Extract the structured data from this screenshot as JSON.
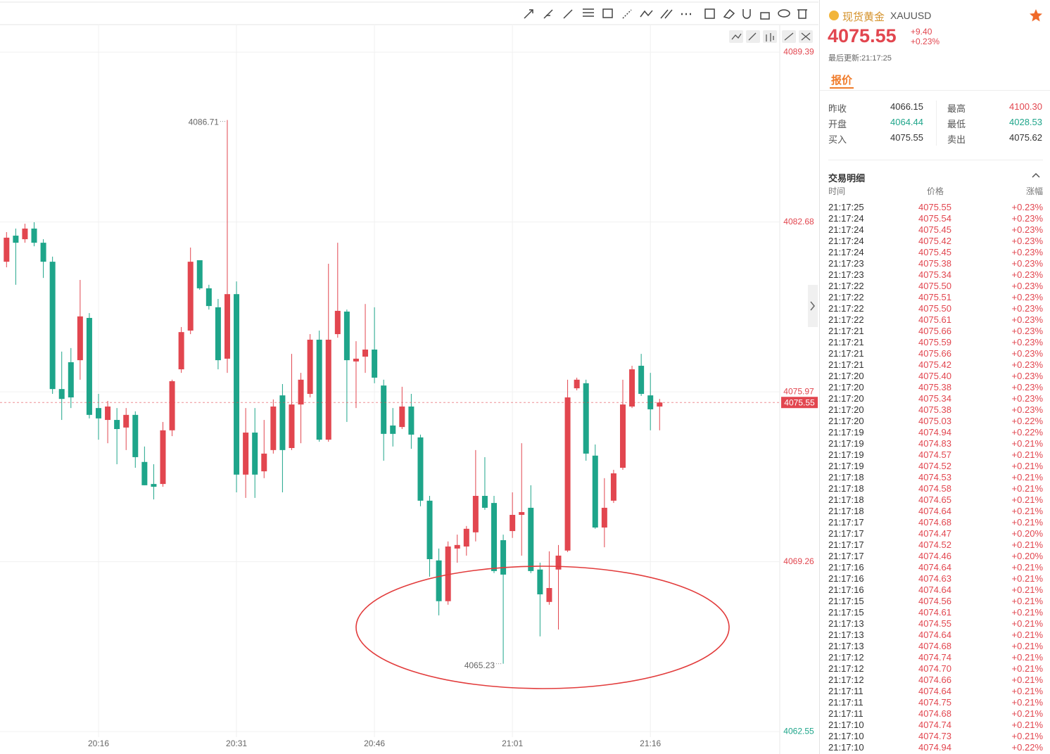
{
  "chart_data": {
    "type": "candlestick",
    "categories": [
      null,
      null,
      null,
      null,
      null,
      null,
      null,
      null,
      null,
      null,
      "20:16",
      null,
      null,
      null,
      null,
      null,
      null,
      null,
      null,
      null,
      null,
      null,
      null,
      null,
      null,
      "20:31",
      null,
      null,
      null,
      null,
      null,
      null,
      null,
      null,
      null,
      null,
      null,
      null,
      null,
      null,
      "20:46",
      null,
      null,
      null,
      null,
      null,
      null,
      null,
      null,
      null,
      null,
      null,
      null,
      null,
      null,
      "21:01",
      null,
      null,
      null,
      null,
      null,
      null,
      null,
      null,
      null,
      null,
      null,
      null,
      null,
      null,
      "21:16",
      null
    ],
    "open": [
      4081.11,
      4082.14,
      4082.0,
      4082.42,
      4081.86,
      4081.11,
      4076.08,
      4077.14,
      4077.22,
      4078.89,
      4075.33,
      4074.86,
      4074.86,
      4074.56,
      4075.06,
      4073.2,
      4072.33,
      4072.33,
      4074.45,
      4076.86,
      4078.39,
      4081.17,
      4080.06,
      4079.31,
      4077.28,
      4079.83,
      4072.7,
      4074.36,
      4072.83,
      4073.67,
      4075.83,
      4073.75,
      4075.47,
      4075.89,
      4078.03,
      4074.08,
      4078.25,
      4079.14,
      4077.17,
      4077.36,
      4077.64,
      4076.22,
      4074.64,
      4074.58,
      4075.39,
      4074.17,
      4071.67,
      4069.31,
      4067.7,
      4069.78,
      4069.86,
      4070.42,
      4071.86,
      4071.58,
      4070.11,
      4070.47,
      4071.11,
      4071.39,
      4068.95,
      4067.67,
      4068.95,
      4069.7,
      4076.11,
      4076.31,
      4073.45,
      4070.61,
      4071.67,
      4072.97,
      4075.39,
      4077.0,
      4075.83,
      4075.39
    ],
    "high": [
      4082.28,
      4082.42,
      4082.61,
      4082.67,
      4082.0,
      4081.31,
      4077.56,
      4077.7,
      4080.39,
      4079.08,
      4075.89,
      4075.61,
      4075.33,
      4075.33,
      4075.2,
      4073.81,
      4073.11,
      4074.78,
      4076.45,
      4078.53,
      4081.67,
      4081.17,
      4080.2,
      4079.64,
      4086.71,
      4080.33,
      4075.33,
      4075.33,
      4074.86,
      4075.67,
      4076.28,
      4077.47,
      4076.72,
      4078.25,
      4078.39,
      4081.03,
      4081.86,
      4079.22,
      4077.97,
      4079.44,
      4079.31,
      4076.45,
      4075.33,
      4076.17,
      4075.89,
      4074.28,
      4071.86,
      4069.78,
      4070.06,
      4070.33,
      4070.67,
      4073.67,
      4073.39,
      4071.86,
      4070.33,
      4072.0,
      4073.94,
      4072.28,
      4069.22,
      4069.67,
      4069.92,
      4076.45,
      4076.53,
      4076.45,
      4073.89,
      4072.56,
      4072.89,
      4076.45,
      4077.0,
      4077.47,
      4076.72,
      4075.69
    ],
    "low": [
      4080.89,
      4080.2,
      4081.86,
      4081.72,
      4080.47,
      4075.89,
      4074.86,
      4075.33,
      4076.45,
      4074.92,
      4074.08,
      4073.94,
      4073.11,
      4073.67,
      4072.97,
      4072.28,
      4071.72,
      4072.22,
      4074.22,
      4076.72,
      4078.25,
      4080.0,
      4079.22,
      4076.86,
      4076.72,
      4072.0,
      4071.78,
      4071.78,
      4072.56,
      4073.53,
      4072.0,
      4073.67,
      4073.94,
      4075.75,
      4074.0,
      4074.0,
      4078.11,
      4074.78,
      4075.33,
      4076.72,
      4076.31,
      4073.25,
      4073.81,
      4074.5,
      4073.72,
      4071.45,
      4068.67,
      4067.14,
      4067.56,
      4069.22,
      4069.5,
      4070.06,
      4071.31,
      4068.81,
      4065.23,
      4070.2,
      4069.5,
      4068.81,
      4066.31,
      4067.56,
      4066.58,
      4069.64,
      4076.03,
      4073.25,
      4070.56,
      4069.83,
      4071.58,
      4072.89,
      4075.33,
      4075.81,
      4074.45,
      4074.45
    ],
    "close": [
      4082.06,
      4081.86,
      4082.42,
      4081.86,
      4081.11,
      4076.08,
      4075.69,
      4075.75,
      4078.95,
      4075.06,
      4074.92,
      4075.39,
      4074.5,
      4075.06,
      4073.39,
      4072.28,
      4072.22,
      4074.45,
      4076.39,
      4078.33,
      4081.11,
      4080.06,
      4079.36,
      4077.22,
      4079.83,
      4072.7,
      4074.36,
      4072.7,
      4073.53,
      4075.39,
      4073.67,
      4075.47,
      4076.45,
      4078.03,
      4074.08,
      4078.03,
      4079.17,
      4077.22,
      4077.28,
      4077.64,
      4076.53,
      4074.31,
      4074.31,
      4075.39,
      4074.28,
      4071.67,
      4069.36,
      4067.7,
      4069.86,
      4069.92,
      4070.56,
      4071.86,
      4071.39,
      4068.89,
      4068.75,
      4071.11,
      4071.22,
      4068.89,
      4067.97,
      4068.22,
      4069.5,
      4075.75,
      4076.45,
      4073.53,
      4070.61,
      4071.39,
      4072.75,
      4075.47,
      4076.86,
      4075.89,
      4075.28,
      4075.55
    ],
    "up_color": "#e2464f",
    "down_color": "#1ea58a",
    "ylim": [
      4062.33,
      4089.56
    ],
    "yticks": [
      4089.39,
      4082.68,
      4075.97,
      4069.26,
      4062.55
    ],
    "grid": true,
    "last_price": 4075.55,
    "max_label": 4086.71,
    "min_label": 4065.23
  },
  "panel": {
    "name": "现货黄金",
    "symbol": "XAUUSD",
    "price": "4075.55",
    "change": "+9.40",
    "change_pct": "+0.23%",
    "last_update": "最后更新:21:17:25",
    "tab": "报价",
    "stats": [
      {
        "label": "昨收",
        "value": "4066.15",
        "color": "#333333"
      },
      {
        "label": "最高",
        "value": "4100.30",
        "color": "#e2464f"
      },
      {
        "label": "开盘",
        "value": "4064.44",
        "color": "#1ea58a"
      },
      {
        "label": "最低",
        "value": "4028.53",
        "color": "#1ea58a"
      },
      {
        "label": "买入",
        "value": "4075.55",
        "color": "#333333"
      },
      {
        "label": "卖出",
        "value": "4075.62",
        "color": "#333333"
      }
    ],
    "trades_title": "交易明细",
    "trades_headers": [
      "时间",
      "价格",
      "涨幅"
    ],
    "trades": [
      [
        "21:17:25",
        "4075.55",
        "+0.23%"
      ],
      [
        "21:17:24",
        "4075.54",
        "+0.23%"
      ],
      [
        "21:17:24",
        "4075.45",
        "+0.23%"
      ],
      [
        "21:17:24",
        "4075.42",
        "+0.23%"
      ],
      [
        "21:17:24",
        "4075.45",
        "+0.23%"
      ],
      [
        "21:17:23",
        "4075.38",
        "+0.23%"
      ],
      [
        "21:17:23",
        "4075.34",
        "+0.23%"
      ],
      [
        "21:17:22",
        "4075.50",
        "+0.23%"
      ],
      [
        "21:17:22",
        "4075.51",
        "+0.23%"
      ],
      [
        "21:17:22",
        "4075.50",
        "+0.23%"
      ],
      [
        "21:17:22",
        "4075.61",
        "+0.23%"
      ],
      [
        "21:17:21",
        "4075.66",
        "+0.23%"
      ],
      [
        "21:17:21",
        "4075.59",
        "+0.23%"
      ],
      [
        "21:17:21",
        "4075.66",
        "+0.23%"
      ],
      [
        "21:17:21",
        "4075.42",
        "+0.23%"
      ],
      [
        "21:17:20",
        "4075.40",
        "+0.23%"
      ],
      [
        "21:17:20",
        "4075.38",
        "+0.23%"
      ],
      [
        "21:17:20",
        "4075.34",
        "+0.23%"
      ],
      [
        "21:17:20",
        "4075.38",
        "+0.23%"
      ],
      [
        "21:17:20",
        "4075.03",
        "+0.22%"
      ],
      [
        "21:17:19",
        "4074.94",
        "+0.22%"
      ],
      [
        "21:17:19",
        "4074.83",
        "+0.21%"
      ],
      [
        "21:17:19",
        "4074.57",
        "+0.21%"
      ],
      [
        "21:17:19",
        "4074.52",
        "+0.21%"
      ],
      [
        "21:17:18",
        "4074.53",
        "+0.21%"
      ],
      [
        "21:17:18",
        "4074.58",
        "+0.21%"
      ],
      [
        "21:17:18",
        "4074.65",
        "+0.21%"
      ],
      [
        "21:17:18",
        "4074.64",
        "+0.21%"
      ],
      [
        "21:17:17",
        "4074.68",
        "+0.21%"
      ],
      [
        "21:17:17",
        "4074.47",
        "+0.20%"
      ],
      [
        "21:17:17",
        "4074.52",
        "+0.21%"
      ],
      [
        "21:17:17",
        "4074.46",
        "+0.20%"
      ],
      [
        "21:17:16",
        "4074.64",
        "+0.21%"
      ],
      [
        "21:17:16",
        "4074.63",
        "+0.21%"
      ],
      [
        "21:17:16",
        "4074.64",
        "+0.21%"
      ],
      [
        "21:17:15",
        "4074.56",
        "+0.21%"
      ],
      [
        "21:17:15",
        "4074.61",
        "+0.21%"
      ],
      [
        "21:17:13",
        "4074.55",
        "+0.21%"
      ],
      [
        "21:17:13",
        "4074.64",
        "+0.21%"
      ],
      [
        "21:17:13",
        "4074.68",
        "+0.21%"
      ],
      [
        "21:17:12",
        "4074.74",
        "+0.21%"
      ],
      [
        "21:17:12",
        "4074.70",
        "+0.21%"
      ],
      [
        "21:17:12",
        "4074.66",
        "+0.21%"
      ],
      [
        "21:17:11",
        "4074.64",
        "+0.21%"
      ],
      [
        "21:17:11",
        "4074.75",
        "+0.21%"
      ],
      [
        "21:17:11",
        "4074.68",
        "+0.21%"
      ],
      [
        "21:17:10",
        "4074.74",
        "+0.21%"
      ],
      [
        "21:17:10",
        "4074.73",
        "+0.21%"
      ],
      [
        "21:17:10",
        "4074.94",
        "+0.22%"
      ]
    ]
  }
}
